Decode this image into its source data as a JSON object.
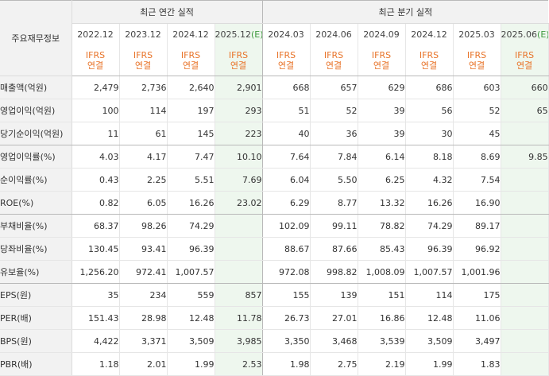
{
  "header": {
    "corner_label": "주요재무정보",
    "annual_title": "최근 연간 실적",
    "quarterly_title": "최근 분기 실적"
  },
  "periods": [
    {
      "label": "2022.12",
      "est": "",
      "standard": "IFRS",
      "basis": "연결"
    },
    {
      "label": "2023.12",
      "est": "",
      "standard": "IFRS",
      "basis": "연결"
    },
    {
      "label": "2024.12",
      "est": "",
      "standard": "IFRS",
      "basis": "연결"
    },
    {
      "label": "2025.12",
      "est": "(E)",
      "standard": "IFRS",
      "basis": "연결"
    },
    {
      "label": "2024.03",
      "est": "",
      "standard": "IFRS",
      "basis": "연결"
    },
    {
      "label": "2024.06",
      "est": "",
      "standard": "IFRS",
      "basis": "연결"
    },
    {
      "label": "2024.09",
      "est": "",
      "standard": "IFRS",
      "basis": "연결"
    },
    {
      "label": "2024.12",
      "est": "",
      "standard": "IFRS",
      "basis": "연결"
    },
    {
      "label": "2025.03",
      "est": "",
      "standard": "IFRS",
      "basis": "연결"
    },
    {
      "label": "2025.06",
      "est": "(E)",
      "standard": "IFRS",
      "basis": "연결"
    }
  ],
  "rows": [
    {
      "label": "매출액(억원)",
      "values": [
        "2,479",
        "2,736",
        "2,640",
        "2,901",
        "668",
        "657",
        "629",
        "686",
        "603",
        "660"
      ]
    },
    {
      "label": "영업이익(억원)",
      "values": [
        "100",
        "114",
        "197",
        "293",
        "51",
        "52",
        "39",
        "56",
        "52",
        "65"
      ]
    },
    {
      "label": "당기순이익(억원)",
      "values": [
        "11",
        "61",
        "145",
        "223",
        "40",
        "36",
        "39",
        "30",
        "45",
        ""
      ]
    },
    {
      "label": "영업이익률(%)",
      "values": [
        "4.03",
        "4.17",
        "7.47",
        "10.10",
        "7.64",
        "7.84",
        "6.14",
        "8.18",
        "8.69",
        "9.85"
      ]
    },
    {
      "label": "순이익률(%)",
      "values": [
        "0.43",
        "2.25",
        "5.51",
        "7.69",
        "6.04",
        "5.50",
        "6.25",
        "4.32",
        "7.54",
        ""
      ]
    },
    {
      "label": "ROE(%)",
      "values": [
        "0.82",
        "6.05",
        "16.26",
        "23.02",
        "6.29",
        "8.77",
        "13.32",
        "16.26",
        "16.90",
        ""
      ]
    },
    {
      "label": "부채비율(%)",
      "values": [
        "68.37",
        "98.26",
        "74.29",
        "",
        "102.09",
        "99.11",
        "78.82",
        "74.29",
        "89.17",
        ""
      ]
    },
    {
      "label": "당좌비율(%)",
      "values": [
        "130.45",
        "93.41",
        "96.39",
        "",
        "88.67",
        "87.66",
        "85.43",
        "96.39",
        "96.92",
        ""
      ]
    },
    {
      "label": "유보율(%)",
      "values": [
        "1,256.20",
        "972.41",
        "1,007.57",
        "",
        "972.08",
        "998.82",
        "1,008.09",
        "1,007.57",
        "1,001.96",
        ""
      ]
    },
    {
      "label": "EPS(원)",
      "values": [
        "35",
        "234",
        "559",
        "857",
        "155",
        "139",
        "151",
        "114",
        "175",
        ""
      ]
    },
    {
      "label": "PER(배)",
      "values": [
        "151.43",
        "28.98",
        "12.48",
        "11.78",
        "26.73",
        "27.01",
        "16.86",
        "12.48",
        "11.06",
        ""
      ]
    },
    {
      "label": "BPS(원)",
      "values": [
        "4,422",
        "3,371",
        "3,509",
        "3,985",
        "3,350",
        "3,468",
        "3,539",
        "3,509",
        "3,497",
        ""
      ]
    },
    {
      "label": "PBR(배)",
      "values": [
        "1.18",
        "2.01",
        "1.99",
        "2.53",
        "1.98",
        "2.75",
        "2.19",
        "1.99",
        "1.83",
        ""
      ]
    }
  ]
}
